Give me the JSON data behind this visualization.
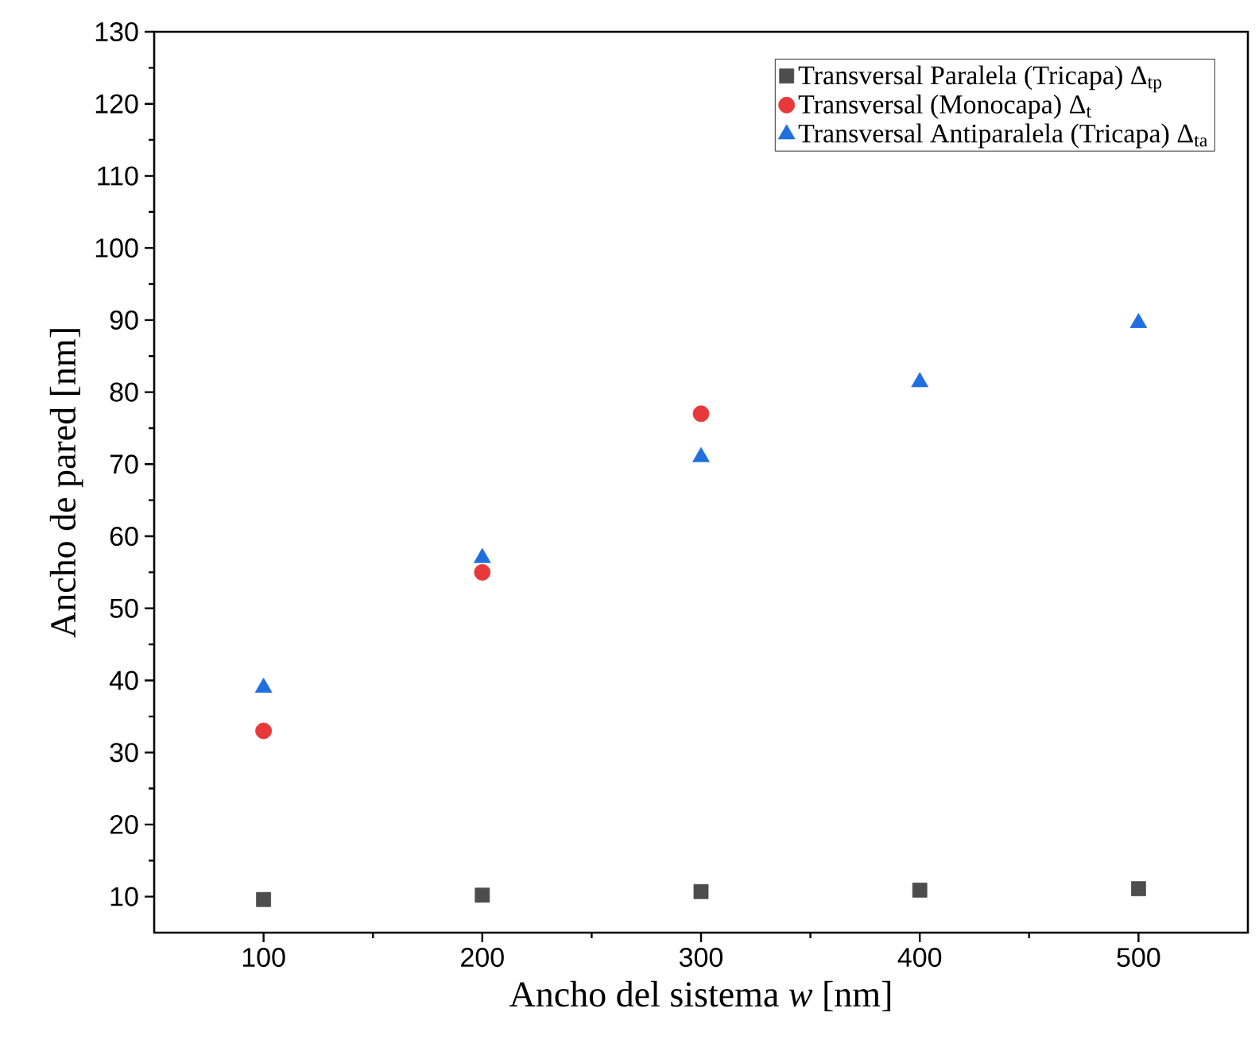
{
  "chart_data": {
    "type": "scatter",
    "xlabel": "Ancho del sistema *w* [nm]",
    "ylabel": "Ancho de pared [nm]",
    "x": [
      100,
      200,
      300,
      400,
      500
    ],
    "series": [
      {
        "name": "Transversal Paralela (Tricapa) Δ$_{tp}$",
        "color": "#4d4d4d",
        "marker": "square",
        "values": [
          9.6,
          10.2,
          10.7,
          10.9,
          11.1
        ]
      },
      {
        "name": "Transversal (Monocapa) Δ$_{t}$",
        "color": "#e8393a",
        "marker": "circle",
        "x": [
          100,
          200,
          300
        ],
        "values": [
          33,
          55,
          77
        ]
      },
      {
        "name": "Transversal Antiparalela (Tricapa) Δ$_{ta}$",
        "color": "#1f6fe0",
        "marker": "triangle",
        "values": [
          39,
          57,
          71,
          81.4,
          89.6
        ]
      }
    ],
    "xlim": [
      50,
      550
    ],
    "ylim": [
      5,
      130
    ],
    "xticks": [
      100,
      200,
      300,
      400,
      500
    ],
    "yticks": [
      10,
      20,
      30,
      40,
      50,
      60,
      70,
      80,
      90,
      100,
      110,
      120,
      130
    ],
    "grid": false,
    "legend": "top right"
  }
}
